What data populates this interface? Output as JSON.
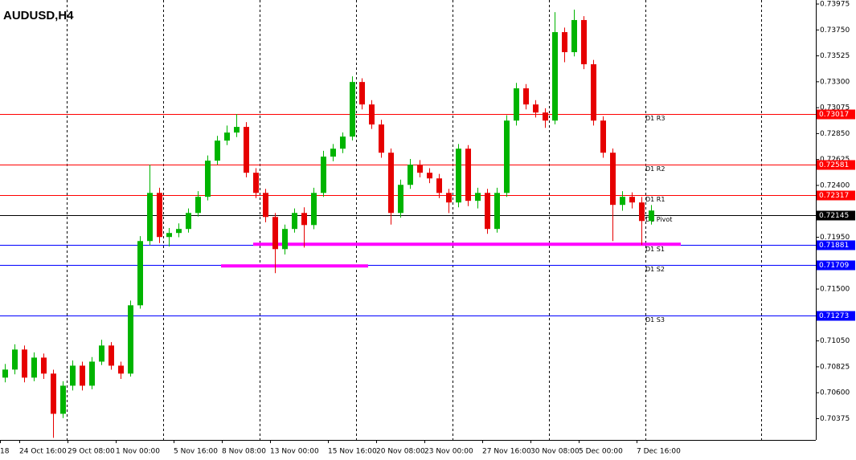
{
  "chart_data": {
    "type": "candlestick",
    "title": "AUDUSD,H4",
    "categories": [
      "18",
      null,
      "24 Oct 16:00",
      null,
      null,
      null,
      null,
      "29 Oct 08:00",
      null,
      null,
      null,
      null,
      "1 Nov 00:00",
      null,
      null,
      null,
      null,
      null,
      "5 Nov 16:00",
      null,
      null,
      null,
      null,
      "8 Nov 08:00",
      null,
      null,
      null,
      null,
      "13 Nov 00:00",
      null,
      null,
      null,
      null,
      null,
      "15 Nov 16:00",
      null,
      null,
      null,
      null,
      "20 Nov 08:00",
      null,
      null,
      null,
      null,
      "23 Nov 00:00",
      null,
      null,
      null,
      null,
      null,
      "27 Nov 16:00",
      null,
      null,
      null,
      null,
      "30 Nov 08:00",
      null,
      null,
      null,
      null,
      "5 Dec 00:00",
      null,
      null,
      null,
      null,
      null,
      "7 Dec 16:00",
      null
    ],
    "open": [
      0.70731,
      0.70801,
      0.70975,
      0.70731,
      0.70905,
      0.70766,
      0.70417,
      0.70661,
      0.70835,
      0.70661,
      0.7087,
      0.7101,
      0.70835,
      0.70766,
      0.71359,
      0.71917,
      0.72335,
      0.71952,
      0.71987,
      0.72022,
      0.72161,
      0.72301,
      0.72615,
      0.72789,
      0.72859,
      0.72908,
      0.7251,
      0.72335,
      0.72126,
      0.71847,
      0.72022,
      0.72161,
      0.72056,
      0.72335,
      0.7265,
      0.72719,
      0.72824,
      0.73298,
      0.73103,
      0.72929,
      0.72684,
      0.72161,
      0.72405,
      0.7258,
      0.7251,
      0.72461,
      0.72335,
      0.72252,
      0.72719,
      0.72266,
      0.72335,
      0.72022,
      0.72335,
      0.72963,
      0.73243,
      0.73103,
      0.73033,
      0.72963,
      0.73731,
      0.73557,
      0.73836,
      0.73452,
      0.72963,
      0.72684,
      0.72231,
      0.72301,
      0.72252,
      0.72091
    ],
    "high": [
      0.7085,
      0.7102,
      0.7101,
      0.7095,
      0.7094,
      0.708,
      0.707,
      0.7088,
      0.7087,
      0.7091,
      0.7106,
      0.7104,
      0.7087,
      0.714,
      0.7196,
      0.7258,
      0.7238,
      0.7203,
      0.7207,
      0.722,
      0.7235,
      0.7266,
      0.7283,
      0.7292,
      0.73019,
      0.7295,
      0.7255,
      0.7237,
      0.7216,
      0.7206,
      0.722,
      0.7221,
      0.7238,
      0.727,
      0.7276,
      0.7286,
      0.73347,
      0.7333,
      0.7314,
      0.7297,
      0.7272,
      0.7245,
      0.7263,
      0.7262,
      0.7255,
      0.725,
      0.7237,
      0.7276,
      0.7275,
      0.7238,
      0.7237,
      0.7238,
      0.7301,
      0.7329,
      0.7328,
      0.7314,
      0.7307,
      0.73905,
      0.7377,
      0.73926,
      0.7387,
      0.7349,
      0.73,
      0.7272,
      0.7235,
      0.7234,
      0.723,
      0.7223
    ],
    "low": [
      0.7069,
      0.7076,
      0.7069,
      0.707,
      0.7072,
      0.70208,
      0.7038,
      0.7062,
      0.7062,
      0.7063,
      0.7084,
      0.708,
      0.7072,
      0.7074,
      0.7133,
      0.7188,
      0.719,
      0.7187,
      0.7195,
      0.7199,
      0.7213,
      0.7227,
      0.7258,
      0.7275,
      0.7282,
      0.7247,
      0.7229,
      0.7208,
      0.71638,
      0.718,
      0.7199,
      0.7186,
      0.7202,
      0.723,
      0.7261,
      0.7268,
      0.7279,
      0.7306,
      0.7289,
      0.7264,
      0.7206,
      0.7212,
      0.7237,
      0.7247,
      0.7242,
      0.7229,
      0.7216,
      0.7221,
      0.7222,
      0.722,
      0.7198,
      0.7199,
      0.723,
      0.7292,
      0.7306,
      0.7299,
      0.729,
      0.7293,
      0.7347,
      0.7352,
      0.7341,
      0.7292,
      0.7264,
      0.71917,
      0.7218,
      0.722,
      0.71882,
      0.7206
    ],
    "close": [
      0.70801,
      0.70975,
      0.70731,
      0.70905,
      0.70766,
      0.70417,
      0.70661,
      0.70835,
      0.70661,
      0.7087,
      0.7101,
      0.70835,
      0.70766,
      0.71359,
      0.71917,
      0.72335,
      0.71952,
      0.71987,
      0.72022,
      0.72161,
      0.72301,
      0.72615,
      0.72789,
      0.72859,
      0.72908,
      0.7251,
      0.72335,
      0.72126,
      0.71847,
      0.72022,
      0.72161,
      0.72056,
      0.72335,
      0.7265,
      0.72719,
      0.72824,
      0.73298,
      0.73103,
      0.72929,
      0.72684,
      0.72161,
      0.72405,
      0.7258,
      0.7251,
      0.72461,
      0.72335,
      0.72252,
      0.72719,
      0.72266,
      0.72335,
      0.72022,
      0.72335,
      0.72963,
      0.73243,
      0.73103,
      0.73033,
      0.72963,
      0.73731,
      0.73557,
      0.73836,
      0.73452,
      0.72963,
      0.72684,
      0.72231,
      0.72301,
      0.72252,
      0.72091,
      0.72182
    ],
    "up_color": "#00b400",
    "down_color": "#e60000",
    "ylim": [
      0.7019,
      0.7401
    ],
    "yticks": [
      0.73975,
      {
        "value": 0.7375,
        "label": "0.73750"
      },
      0.73525,
      {
        "value": 0.733,
        "label": "0.73300"
      },
      0.73075,
      {
        "value": 0.7285,
        "label": "0.72850"
      },
      0.72625,
      {
        "value": 0.724,
        "label": "0.72400"
      },
      {
        "value": 0.7195,
        "label": "0.71950"
      },
      {
        "value": 0.715,
        "label": "0.71500"
      },
      {
        "value": 0.7105,
        "label": "0.71050"
      },
      0.70825,
      {
        "value": 0.706,
        "label": "0.70600"
      },
      0.70375
    ],
    "pivots": [
      {
        "name": "D1 R3",
        "value": 0.73017,
        "color": "#ff0000"
      },
      {
        "name": "D1 R2",
        "value": 0.72581,
        "color": "#ff0000"
      },
      {
        "name": "D1 R1",
        "value": 0.72317,
        "color": "#ff0000"
      },
      {
        "name": "D1 Pivot",
        "value": 0.72145,
        "color": "#000000"
      },
      {
        "name": "D1 S1",
        "value": 0.71881,
        "color": "#0000ff"
      },
      {
        "name": "D1 S2",
        "value": 0.71709,
        "color": "#0000ff"
      },
      {
        "name": "D1 S3",
        "value": 0.71273,
        "color": "#0000ff"
      }
    ],
    "support_lines": [
      {
        "value": 0.71889,
        "color": "#ff00ff"
      },
      {
        "value": 0.71701,
        "color": "#ff00ff"
      }
    ]
  }
}
